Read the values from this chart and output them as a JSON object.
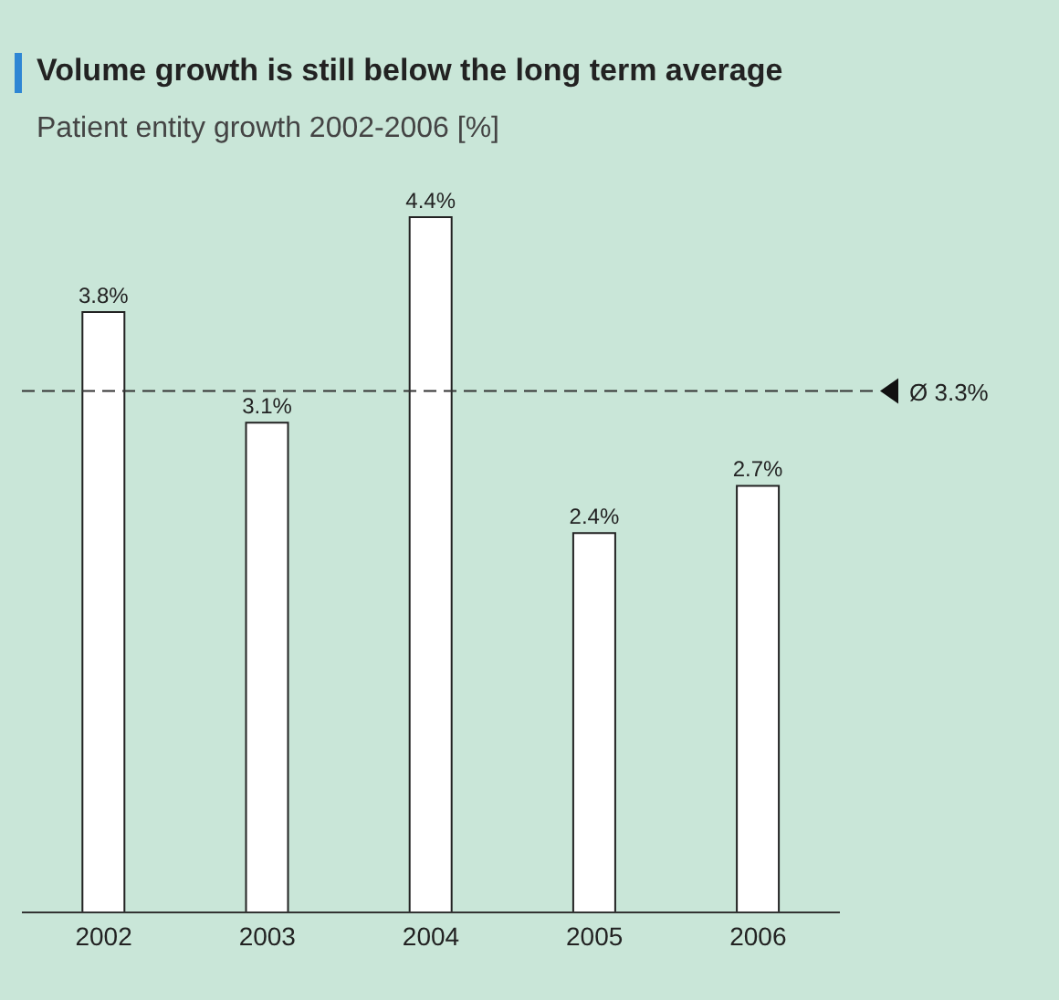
{
  "chart_data": {
    "type": "bar",
    "title": "Volume growth is still below the long term average",
    "subtitle": "Patient entity growth 2002-2006 [%]",
    "categories": [
      "2002",
      "2003",
      "2004",
      "2005",
      "2006"
    ],
    "values": [
      3.8,
      3.1,
      4.4,
      2.4,
      2.7
    ],
    "value_labels": [
      "3.8%",
      "3.1%",
      "4.4%",
      "2.4%",
      "2.7%"
    ],
    "color": "#ffffff",
    "ref_lines": [
      {
        "axis": "y",
        "value": 3.3,
        "label": "Ø 3.3%",
        "color": "#333333",
        "line_style": "dashed"
      }
    ]
  }
}
